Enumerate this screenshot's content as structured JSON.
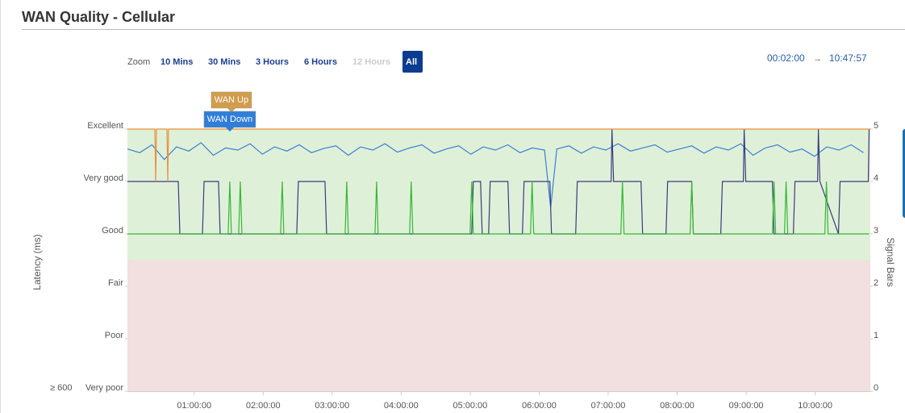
{
  "header": {
    "title": "WAN Quality - Cellular"
  },
  "zoom": {
    "label": "Zoom",
    "buttons": [
      "10 Mins",
      "30 Mins",
      "3 Hours",
      "6 Hours",
      "12 Hours",
      "All"
    ],
    "disabled_index": 4,
    "active_index": 5
  },
  "range": {
    "start": "00:02:00",
    "arrow": "→",
    "end": "10:47:57"
  },
  "chart_data": {
    "type": "line",
    "ylabel": "Latency (ms)",
    "y2label": "Signal Bars",
    "floor_label": "≥ 600",
    "xlim": [
      120,
      38877
    ],
    "xticks": [
      {
        "value": 3600,
        "label": "01:00:00"
      },
      {
        "value": 7200,
        "label": "02:00:00"
      },
      {
        "value": 10800,
        "label": "03:00:00"
      },
      {
        "value": 14400,
        "label": "04:00:00"
      },
      {
        "value": 18000,
        "label": "05:00:00"
      },
      {
        "value": 21600,
        "label": "06:00:00"
      },
      {
        "value": 25200,
        "label": "07:00:00"
      },
      {
        "value": 28800,
        "label": "08:00:00"
      },
      {
        "value": 32400,
        "label": "09:00:00"
      },
      {
        "value": 36000,
        "label": "10:00:00"
      }
    ],
    "ylim": [
      0,
      5
    ],
    "yticks": [
      {
        "value": 5,
        "label": "Excellent"
      },
      {
        "value": 4,
        "label": "Very good"
      },
      {
        "value": 3,
        "label": "Good"
      },
      {
        "value": 2,
        "label": "Fair"
      },
      {
        "value": 1,
        "label": "Poor"
      },
      {
        "value": 0,
        "label": "Very poor"
      }
    ],
    "y2lim": [
      0,
      5
    ],
    "y2ticks": [
      5,
      4,
      3,
      2,
      1,
      0
    ],
    "bands": [
      {
        "from": 2.5,
        "to": 5,
        "color": "#dff0d8"
      },
      {
        "from": 0,
        "to": 2.5,
        "color": "#f2dfe0"
      }
    ],
    "annotations": [
      {
        "text": "WAN Up",
        "x": 5546,
        "color": "#d19c4c"
      },
      {
        "text": "WAN Down",
        "x": 5462,
        "color": "#2f7ed8"
      }
    ],
    "series": [
      {
        "name": "Latency",
        "color": "#3a7fd6",
        "axis": "y",
        "x": [
          120,
          760,
          1400,
          2040,
          2680,
          3320,
          3960,
          4600,
          5240,
          5880,
          6520,
          7160,
          7800,
          8440,
          9080,
          9720,
          10360,
          11000,
          11640,
          12280,
          12920,
          13560,
          14200,
          14840,
          15480,
          16120,
          16760,
          17400,
          18040,
          18680,
          19320,
          19960,
          20600,
          21240,
          21880,
          22200,
          22520,
          23160,
          23800,
          24440,
          25080,
          25720,
          26360,
          27000,
          27640,
          28280,
          28920,
          29560,
          30200,
          30840,
          31480,
          32120,
          32760,
          33400,
          34040,
          34680,
          35320,
          35960,
          36600,
          37240,
          37880,
          38520
        ],
        "values": [
          4.62,
          4.55,
          4.7,
          4.42,
          4.66,
          4.58,
          4.74,
          4.5,
          4.64,
          4.6,
          4.72,
          4.52,
          4.66,
          4.58,
          4.7,
          4.55,
          4.63,
          4.68,
          4.5,
          4.66,
          4.6,
          4.72,
          4.56,
          4.64,
          4.7,
          4.54,
          4.62,
          4.68,
          4.52,
          4.66,
          4.6,
          4.7,
          4.55,
          4.64,
          4.6,
          3.5,
          4.62,
          4.68,
          4.54,
          4.66,
          4.6,
          4.72,
          4.58,
          4.64,
          4.7,
          4.56,
          4.62,
          4.68,
          4.54,
          4.66,
          4.6,
          4.72,
          4.5,
          4.64,
          4.7,
          4.56,
          4.62,
          4.48,
          4.66,
          4.6,
          4.7,
          4.55
        ]
      },
      {
        "name": "Signal",
        "color": "#3b3a7e",
        "axis": "y2",
        "x": [
          120,
          2770,
          2854,
          4032,
          4116,
          4873,
          4957,
          8953,
          9037,
          10425,
          10509,
          18080,
          18164,
          18542,
          18626,
          18962,
          19046,
          19971,
          20056,
          20729,
          20813,
          22159,
          22243,
          23505,
          23589,
          25356,
          25398,
          25482,
          26912,
          26996,
          28216,
          28300,
          29562,
          29646,
          31076,
          31160,
          32254,
          32296,
          32380,
          33768,
          33852,
          34861,
          34945,
          36123,
          36165,
          36249,
          37216,
          37300,
          38772,
          38814
        ],
        "values": [
          4,
          4,
          3,
          3,
          4,
          4,
          3,
          3,
          4,
          4,
          3,
          3,
          4,
          4,
          3,
          3,
          4,
          4,
          3,
          3,
          4,
          4,
          3,
          3,
          4,
          4,
          5,
          4,
          4,
          3,
          3,
          4,
          4,
          3,
          3,
          4,
          4,
          5,
          4,
          4,
          3,
          3,
          4,
          4,
          5,
          4,
          3,
          4,
          4,
          5
        ]
      },
      {
        "name": "Signal (Secondary)",
        "color": "#34b834",
        "axis": "y2",
        "x": [
          120,
          5378,
          5462,
          5546,
          5924,
          6008,
          6092,
          8112,
          8196,
          8280,
          11476,
          11560,
          11644,
          13033,
          13117,
          13201,
          14841,
          14925,
          15009,
          17996,
          18080,
          18164,
          21150,
          21234,
          21318,
          25861,
          25945,
          26029,
          29478,
          29562,
          29646,
          33768,
          33852,
          33936,
          34399,
          34483,
          34567,
          36502,
          36586,
          36670,
          38814
        ],
        "values": [
          3,
          3,
          4,
          3,
          3,
          4,
          3,
          3,
          4,
          3,
          3,
          4,
          3,
          3,
          4,
          3,
          3,
          4,
          3,
          3,
          4,
          3,
          3,
          4,
          3,
          3,
          4,
          3,
          3,
          4,
          3,
          3,
          4,
          3,
          3,
          4,
          3,
          3,
          4,
          3,
          3
        ]
      },
      {
        "name": "WAN",
        "color": "#e8913a",
        "axis": "y2",
        "x": [
          120,
          1550,
          1592,
          1634,
          2180,
          2223,
          2264,
          38877
        ],
        "values": [
          5,
          5,
          4,
          5,
          5,
          4,
          5,
          5
        ]
      }
    ]
  }
}
